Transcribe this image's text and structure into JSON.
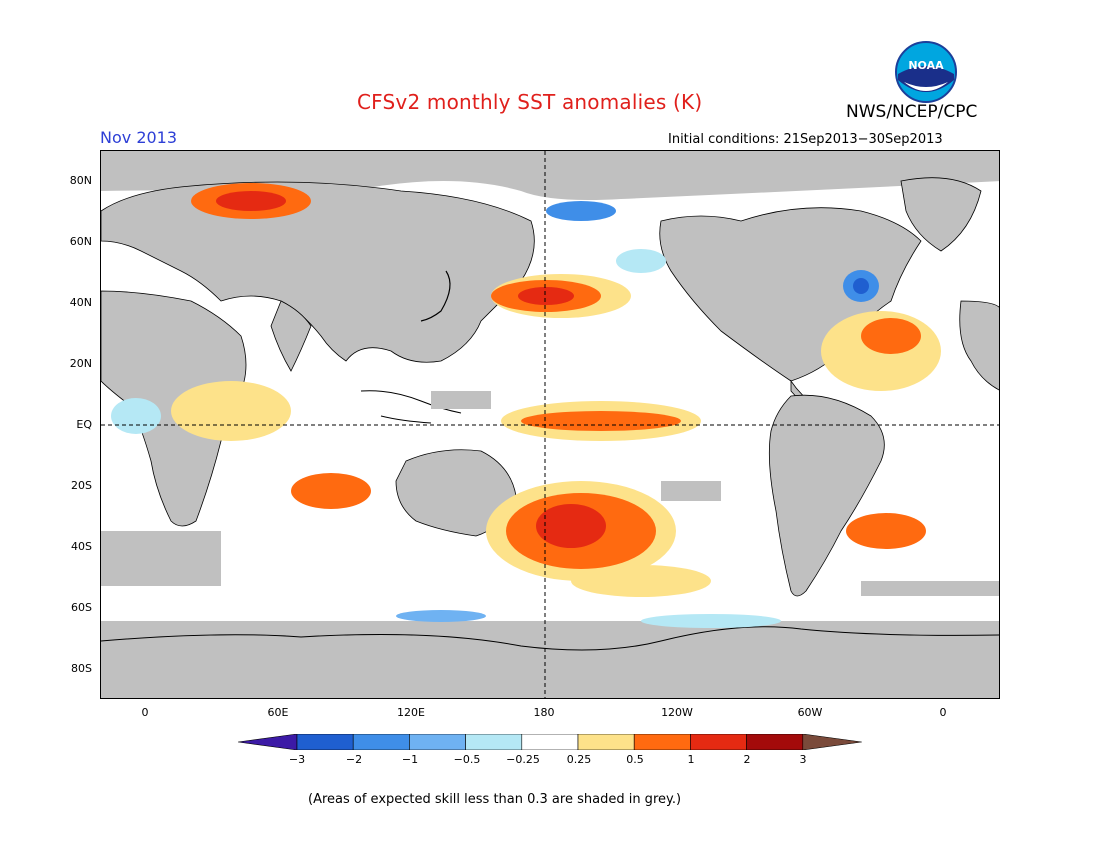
{
  "header": {
    "title": "CFSv2 monthly SST anomalies (K)",
    "agency": "NWS/NCEP/CPC",
    "logo_text": "NOAA",
    "month": "Nov 2013",
    "initial_conditions": "Initial conditions: 21Sep2013−30Sep2013"
  },
  "map": {
    "lat_labels": [
      "80N",
      "60N",
      "40N",
      "20N",
      "EQ",
      "20S",
      "40S",
      "60S",
      "80S"
    ],
    "lon_labels": [
      "0",
      "60E",
      "120E",
      "180",
      "120W",
      "60W",
      "0"
    ],
    "land_color": "#c0c0c0",
    "ocean_color": "#ffffff"
  },
  "colorbar": {
    "labels": [
      "−3",
      "−2",
      "−1",
      "−0.5",
      "−0.25",
      "0.25",
      "0.5",
      "1",
      "2",
      "3"
    ],
    "colors": [
      "#3c1aa6",
      "#1f5fd0",
      "#3f8ee8",
      "#6fb2f2",
      "#b5e8f5",
      "#ffffff",
      "#fde28a",
      "#ff6a10",
      "#e52a12",
      "#a30a0a",
      "#7a4a3a"
    ]
  },
  "footnote": "(Areas of expected skill less than 0.3 are shaded in grey.)"
}
